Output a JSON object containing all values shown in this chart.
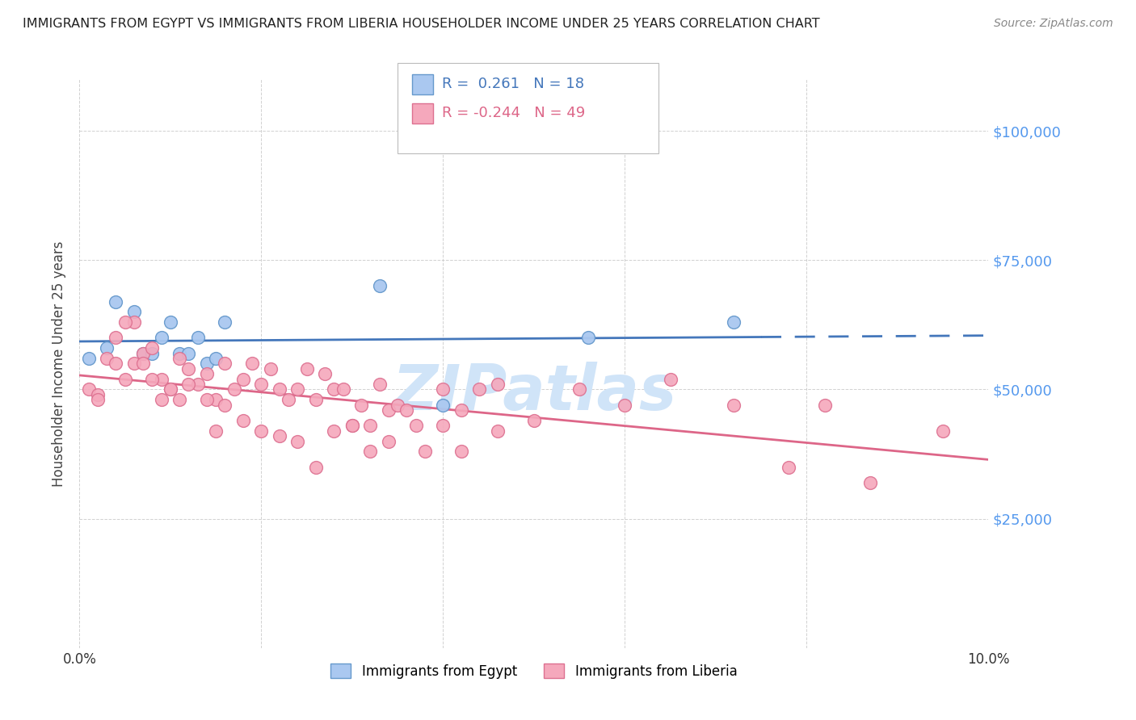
{
  "title": "IMMIGRANTS FROM EGYPT VS IMMIGRANTS FROM LIBERIA HOUSEHOLDER INCOME UNDER 25 YEARS CORRELATION CHART",
  "source": "Source: ZipAtlas.com",
  "ylabel": "Householder Income Under 25 years",
  "xlim": [
    0,
    0.1
  ],
  "ylim": [
    0,
    110000
  ],
  "yticks": [
    0,
    25000,
    50000,
    75000,
    100000
  ],
  "xticks": [
    0.0,
    0.02,
    0.04,
    0.06,
    0.08,
    0.1
  ],
  "xtick_labels": [
    "0.0%",
    "",
    "",
    "",
    "",
    "10.0%"
  ],
  "egypt_R": 0.261,
  "egypt_N": 18,
  "liberia_R": -0.244,
  "liberia_N": 49,
  "egypt_color": "#aac8f0",
  "liberia_color": "#f5a8bc",
  "egypt_edge_color": "#6699cc",
  "liberia_edge_color": "#dd7090",
  "egypt_line_color": "#4477bb",
  "liberia_line_color": "#dd6688",
  "legend_egypt_color": "#4477bb",
  "legend_liberia_color": "#dd6688",
  "background_color": "#ffffff",
  "grid_color": "#cccccc",
  "title_color": "#222222",
  "right_label_color": "#5599ee",
  "watermark_color": "#d0e4f8",
  "egypt_x": [
    0.001,
    0.003,
    0.004,
    0.006,
    0.007,
    0.008,
    0.009,
    0.01,
    0.011,
    0.012,
    0.013,
    0.014,
    0.015,
    0.016,
    0.033,
    0.04,
    0.056,
    0.072
  ],
  "egypt_y": [
    56000,
    58000,
    67000,
    65000,
    57000,
    57000,
    60000,
    63000,
    57000,
    57000,
    60000,
    55000,
    56000,
    63000,
    70000,
    47000,
    60000,
    63000
  ],
  "liberia_x": [
    0.001,
    0.002,
    0.003,
    0.004,
    0.005,
    0.006,
    0.007,
    0.008,
    0.009,
    0.01,
    0.011,
    0.012,
    0.013,
    0.014,
    0.015,
    0.016,
    0.017,
    0.018,
    0.019,
    0.02,
    0.021,
    0.022,
    0.023,
    0.024,
    0.025,
    0.026,
    0.027,
    0.028,
    0.029,
    0.03,
    0.031,
    0.032,
    0.033,
    0.034,
    0.035,
    0.036,
    0.037,
    0.04,
    0.042,
    0.044,
    0.046,
    0.055,
    0.06,
    0.065,
    0.072,
    0.078,
    0.082,
    0.087,
    0.095
  ],
  "liberia_y": [
    50000,
    49000,
    56000,
    60000,
    52000,
    63000,
    57000,
    58000,
    52000,
    50000,
    56000,
    54000,
    51000,
    53000,
    48000,
    55000,
    50000,
    52000,
    55000,
    51000,
    54000,
    50000,
    48000,
    50000,
    54000,
    48000,
    53000,
    50000,
    50000,
    43000,
    47000,
    43000,
    51000,
    46000,
    47000,
    46000,
    43000,
    50000,
    46000,
    50000,
    51000,
    50000,
    47000,
    52000,
    47000,
    35000,
    47000,
    32000,
    42000
  ],
  "liberia_extra_x": [
    0.002,
    0.004,
    0.005,
    0.006,
    0.007,
    0.008,
    0.009,
    0.01,
    0.011,
    0.012,
    0.014,
    0.015,
    0.016,
    0.018,
    0.02,
    0.022,
    0.024,
    0.026,
    0.028,
    0.03,
    0.032,
    0.034,
    0.038,
    0.04,
    0.042,
    0.046,
    0.05
  ],
  "liberia_extra_y": [
    48000,
    55000,
    63000,
    55000,
    55000,
    52000,
    48000,
    50000,
    48000,
    51000,
    48000,
    42000,
    47000,
    44000,
    42000,
    41000,
    40000,
    35000,
    42000,
    43000,
    38000,
    40000,
    38000,
    43000,
    38000,
    42000,
    44000
  ],
  "egypt_trend_solid_end": 0.075,
  "watermark": "ZIPatlas"
}
